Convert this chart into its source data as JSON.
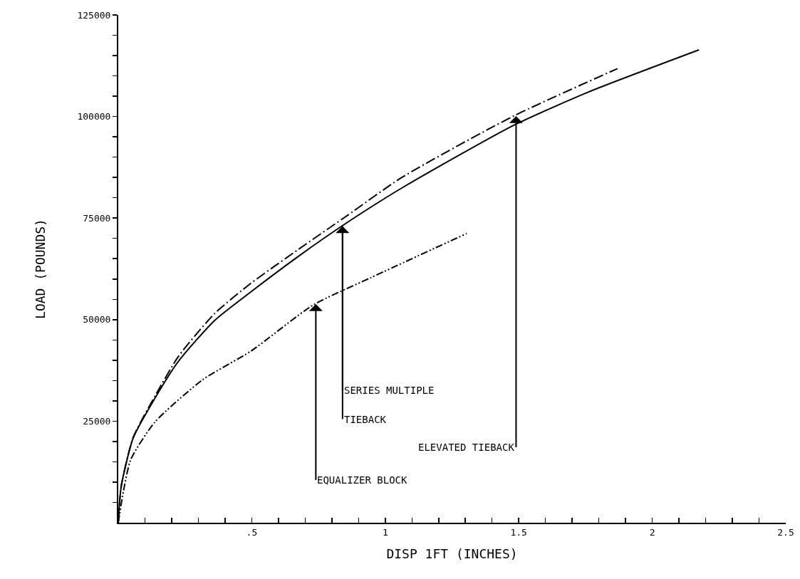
{
  "chart_data": {
    "type": "line",
    "xlabel": "DISP 1FT (INCHES)",
    "ylabel": "LOAD (POUNDS)",
    "series": [
      {
        "color": "#000000",
        "line_style": "solid",
        "x": [
          0,
          0.011,
          0.056,
          0.136,
          0.226,
          0.361,
          0.496,
          0.675,
          0.855,
          1.062,
          1.48,
          1.76,
          2.175
        ],
        "values": [
          0,
          8900,
          20900,
          30500,
          39800,
          49800,
          56800,
          65600,
          73800,
          82400,
          97800,
          106000,
          116400
        ]
      },
      {
        "color": "#000000",
        "line_style": "dashed",
        "x": [
          0,
          0.011,
          0.056,
          0.136,
          0.226,
          0.361,
          0.496,
          0.675,
          0.855,
          1.062,
          1.48,
          1.87
        ],
        "values": [
          0,
          9000,
          21000,
          31000,
          41000,
          51500,
          58900,
          67300,
          75500,
          85000,
          100100,
          111800
        ]
      },
      {
        "color": "#000000",
        "line_style": "dotted",
        "x": [
          0,
          0.02,
          0.047,
          0.136,
          0.316,
          0.496,
          0.73,
          0.945,
          1.305
        ],
        "values": [
          0,
          8000,
          15600,
          24700,
          35200,
          42200,
          53600,
          60300,
          71200
        ]
      }
    ],
    "xlim": [
      0,
      2.5
    ],
    "xticks": [
      {
        "value": 0.1,
        "label": null
      },
      {
        "value": 0.2,
        "label": null
      },
      {
        "value": 0.3,
        "label": null
      },
      {
        "value": 0.4,
        "label": null
      },
      {
        "value": 0.5,
        "label": ".5"
      },
      {
        "value": 0.6,
        "label": null
      },
      {
        "value": 0.7,
        "label": null
      },
      {
        "value": 0.8,
        "label": null
      },
      {
        "value": 0.9,
        "label": null
      },
      1,
      {
        "value": 1.1,
        "label": null
      },
      {
        "value": 1.2,
        "label": null
      },
      {
        "value": 1.3,
        "label": null
      },
      {
        "value": 1.4,
        "label": null
      },
      1.5,
      {
        "value": 1.6,
        "label": null
      },
      {
        "value": 1.7,
        "label": null
      },
      {
        "value": 1.8,
        "label": null
      },
      {
        "value": 1.9,
        "label": null
      },
      2,
      {
        "value": 2.1,
        "label": null
      },
      {
        "value": 2.2,
        "label": null
      },
      {
        "value": 2.3,
        "label": null
      },
      {
        "value": 2.4,
        "label": null
      },
      2.5
    ],
    "ylim": [
      0,
      125000
    ],
    "yticks": [
      {
        "value": 5000,
        "label": null
      },
      {
        "value": 10000,
        "label": null
      },
      {
        "value": 15000,
        "label": null
      },
      {
        "value": 20000,
        "label": null
      },
      25000,
      {
        "value": 30000,
        "label": null
      },
      {
        "value": 35000,
        "label": null
      },
      {
        "value": 40000,
        "label": null
      },
      {
        "value": 45000,
        "label": null
      },
      50000,
      {
        "value": 55000,
        "label": null
      },
      {
        "value": 60000,
        "label": null
      },
      {
        "value": 65000,
        "label": null
      },
      {
        "value": 70000,
        "label": null
      },
      75000,
      {
        "value": 80000,
        "label": null
      },
      {
        "value": 85000,
        "label": null
      },
      {
        "value": 90000,
        "label": null
      },
      {
        "value": 95000,
        "label": null
      },
      100000,
      {
        "value": 105000,
        "label": null
      },
      {
        "value": 110000,
        "label": null
      },
      {
        "value": 115000,
        "label": null
      },
      {
        "value": 120000,
        "label": null
      },
      125000
    ],
    "annotations": [
      {
        "text": "SERIES MULTIPLE",
        "x": 0.84,
        "y": 73000
      },
      {
        "text": "TIEBACK",
        "x": 0.84,
        "y": 73000
      },
      {
        "text": "ELEVATED TIEBACK",
        "x": 1.49,
        "y": 100100
      },
      {
        "text": "EQUALIZER BLOCK",
        "x": 0.74,
        "y": 53800
      }
    ],
    "grid": false,
    "marker": "none"
  }
}
